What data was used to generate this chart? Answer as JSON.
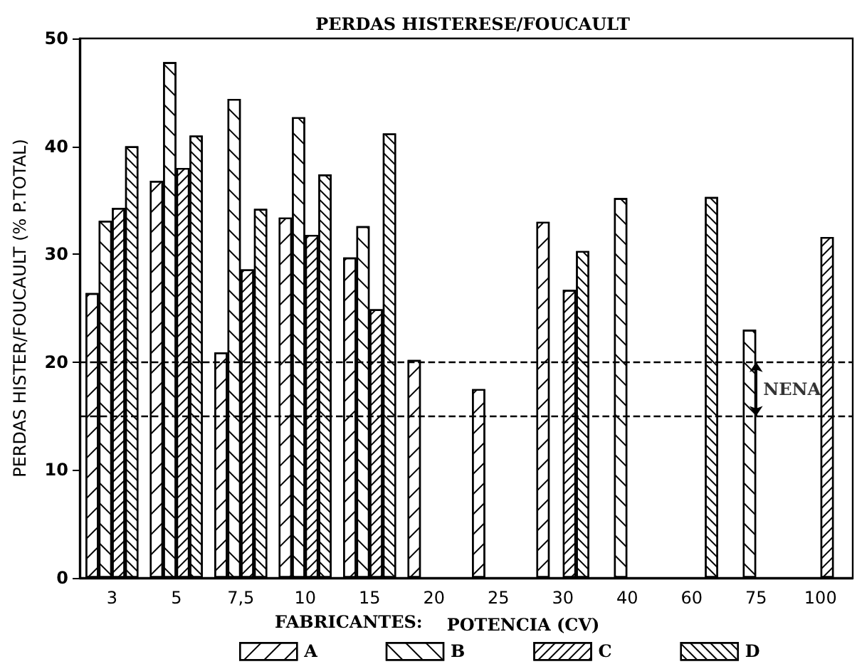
{
  "chart_data": {
    "type": "bar",
    "title": "PERDAS HISTERESE/FOUCAULT",
    "xlabel": "POTENCIA (CV)",
    "ylabel": "PERDAS HISTER/FOUCAULT (% P.TOTAL)",
    "legend_title": "FABRICANTES:",
    "categories": [
      "3",
      "5",
      "7,5",
      "10",
      "15",
      "20",
      "25",
      "30",
      "40",
      "60",
      "75",
      "100"
    ],
    "series": [
      {
        "name": "A",
        "values": [
          26.4,
          36.8,
          20.9,
          33.4,
          29.7,
          20.2,
          17.5,
          33.0,
          null,
          null,
          null,
          null
        ]
      },
      {
        "name": "B",
        "values": [
          33.1,
          47.8,
          44.4,
          42.7,
          32.6,
          null,
          null,
          null,
          35.2,
          null,
          23.0,
          null
        ]
      },
      {
        "name": "C",
        "values": [
          34.3,
          38.0,
          28.6,
          31.8,
          24.9,
          null,
          null,
          26.7,
          null,
          null,
          null,
          31.6
        ]
      },
      {
        "name": "D",
        "values": [
          40.0,
          41.0,
          34.2,
          37.4,
          41.2,
          null,
          null,
          30.3,
          null,
          35.3,
          null,
          null
        ]
      }
    ],
    "ylim": [
      0,
      50
    ],
    "yticks": [
      0,
      10,
      20,
      30,
      40,
      50
    ],
    "ref_lines": [
      {
        "axis": "y",
        "value": 20,
        "line_style": "dashed"
      },
      {
        "axis": "y",
        "value": 15,
        "line_style": "dashed"
      }
    ],
    "annotations": [
      {
        "text": "NENA",
        "x": "75",
        "y": 17.5
      }
    ],
    "grid": false,
    "legend": "bottom"
  }
}
